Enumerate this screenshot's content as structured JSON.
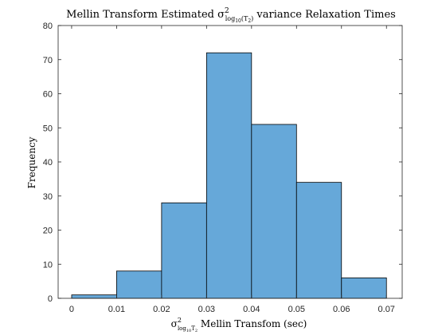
{
  "chart_data": {
    "type": "bar",
    "title": {
      "pre": "Mellin Transform Estimated σ",
      "sup": "2",
      "sub": "log",
      "sub_sub": "10",
      "sub_rest": "(T",
      "sub_rest_sub": "2",
      "sub_close": ")",
      "post": " variance Relaxation Times"
    },
    "xlabel": {
      "sym": "σ",
      "sup": "2",
      "sub": "log",
      "sub_sub": "10",
      "sub_rest": "T",
      "sub_rest_sub": "2",
      "post": " Mellin Transfom (sec)"
    },
    "ylabel": "Frequency",
    "bin_edges": [
      0,
      0.01,
      0.02,
      0.03,
      0.04,
      0.05,
      0.06,
      0.07
    ],
    "values": [
      1,
      8,
      28,
      72,
      51,
      34,
      6
    ],
    "xlim": [
      -0.003,
      0.0735
    ],
    "ylim": [
      0,
      80
    ],
    "xticks": [
      0,
      0.01,
      0.02,
      0.03,
      0.04,
      0.05,
      0.06,
      0.07
    ],
    "xtick_labels": [
      "0",
      "0.01",
      "0.02",
      "0.03",
      "0.04",
      "0.05",
      "0.06",
      "0.07"
    ],
    "yticks": [
      0,
      10,
      20,
      30,
      40,
      50,
      60,
      70,
      80
    ],
    "ytick_labels": [
      "0",
      "10",
      "20",
      "30",
      "40",
      "50",
      "60",
      "70",
      "80"
    ],
    "bar_color": "#66A8D9",
    "edge_color": "#000000"
  }
}
